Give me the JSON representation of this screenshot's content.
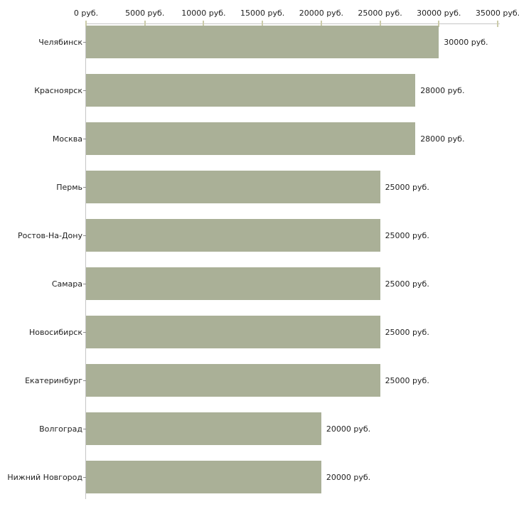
{
  "chart_data": {
    "type": "bar",
    "orientation": "horizontal",
    "title": "",
    "xlabel": "",
    "ylabel": "",
    "unit": "руб.",
    "categories": [
      "Челябинск",
      "Красноярск",
      "Москва",
      "Пермь",
      "Ростов-На-Дону",
      "Самара",
      "Новосибирск",
      "Екатеринбург",
      "Волгоград",
      "Нижний Новгород"
    ],
    "values": [
      30000,
      28000,
      28000,
      25000,
      25000,
      25000,
      25000,
      25000,
      20000,
      20000
    ],
    "value_labels": [
      "30000 руб.",
      "28000 руб.",
      "28000 руб.",
      "25000 руб.",
      "25000 руб.",
      "25000 руб.",
      "25000 руб.",
      "25000 руб.",
      "20000 руб.",
      "20000 руб."
    ],
    "xlim": [
      0,
      35000
    ],
    "x_ticks": [
      0,
      5000,
      10000,
      15000,
      20000,
      25000,
      30000,
      35000
    ],
    "x_tick_labels": [
      "0 руб.",
      "5000 руб.",
      "10000 руб.",
      "15000 руб.",
      "20000 руб.",
      "25000 руб.",
      "30000 руб.",
      "35000 руб."
    ],
    "axis_position": "top",
    "grid": false,
    "legend": false,
    "colors": {
      "bar": "#AAB097",
      "axis_line": "#C6C6C6",
      "x_tick": "#CCCCAA",
      "category_tick": "#8A8A8A",
      "text": "#222222",
      "background": "#FFFFFF"
    }
  }
}
